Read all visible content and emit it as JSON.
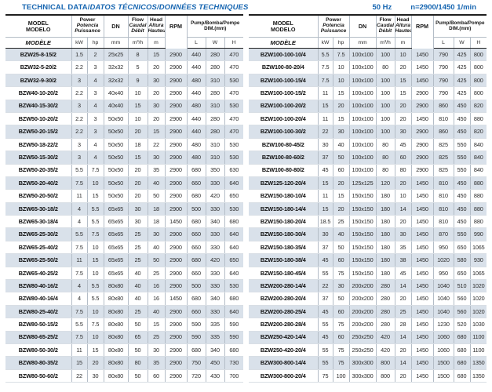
{
  "title": {
    "part1": "TECHNICAL DATA/",
    "part2": "DATOS TÉCNICOS/DONNÉES TECHNIQUES"
  },
  "frequency_label": "50 Hz",
  "speed_label": "n=2900/1450 1/min",
  "colors": {
    "accent_blue": "#1766b1",
    "row_shade": "#d9e1ea",
    "border_dark": "#1f1f1f",
    "border_light": "#b4bdc7"
  },
  "header": {
    "model_lines": [
      "MODEL",
      "MODELO",
      "MODÈLE"
    ],
    "power_lines": [
      "Power",
      "Potencia",
      "Puissance"
    ],
    "dn": "DN",
    "flow_lines": [
      "Flow",
      "Caudal",
      "Débit"
    ],
    "head_lines": [
      "Head",
      "Altura",
      "Hauteur"
    ],
    "rpm": "RPM",
    "dim_lines": [
      "Pump/Bomba/Pompe",
      "DIM.(mm)"
    ],
    "units": {
      "kw": "kW",
      "hp": "hp",
      "mm": "mm",
      "flow": "m³/h",
      "head": "m",
      "l": "L",
      "w": "W",
      "h": "H"
    }
  },
  "left_table": {
    "rows": [
      [
        "BZW25-8-15/2",
        "1.5",
        "2",
        "25x25",
        "8",
        "15",
        "2900",
        "440",
        "280",
        "470"
      ],
      [
        "BZW32-5-20/2",
        "2.2",
        "3",
        "32x32",
        "5",
        "20",
        "2900",
        "440",
        "280",
        "470"
      ],
      [
        "BZW32-9-30/2",
        "3",
        "4",
        "32x32",
        "9",
        "30",
        "2900",
        "480",
        "310",
        "530"
      ],
      [
        "BZW40-10-20/2",
        "2.2",
        "3",
        "40x40",
        "10",
        "20",
        "2900",
        "440",
        "280",
        "470"
      ],
      [
        "BZW40-15-30/2",
        "3",
        "4",
        "40x40",
        "15",
        "30",
        "2900",
        "480",
        "310",
        "530"
      ],
      [
        "BZW50-10-20/2",
        "2.2",
        "3",
        "50x50",
        "10",
        "20",
        "2900",
        "440",
        "280",
        "470"
      ],
      [
        "BZW50-20-15/2",
        "2.2",
        "3",
        "50x50",
        "20",
        "15",
        "2900",
        "440",
        "280",
        "470"
      ],
      [
        "BZW50-18-22/2",
        "3",
        "4",
        "50x50",
        "18",
        "22",
        "2900",
        "480",
        "310",
        "530"
      ],
      [
        "BZW50-15-30/2",
        "3",
        "4",
        "50x50",
        "15",
        "30",
        "2900",
        "480",
        "310",
        "530"
      ],
      [
        "BZW50-20-35/2",
        "5.5",
        "7.5",
        "50x50",
        "20",
        "35",
        "2900",
        "680",
        "350",
        "630"
      ],
      [
        "BZW50-20-40/2",
        "7.5",
        "10",
        "50x50",
        "20",
        "40",
        "2900",
        "660",
        "330",
        "640"
      ],
      [
        "BZW50-20-50/2",
        "11",
        "15",
        "50x50",
        "20",
        "50",
        "2900",
        "680",
        "420",
        "650"
      ],
      [
        "BZW65-30-18/2",
        "4",
        "5.5",
        "65x65",
        "30",
        "18",
        "2900",
        "500",
        "330",
        "530"
      ],
      [
        "BZW65-30-18/4",
        "4",
        "5.5",
        "65x65",
        "30",
        "18",
        "1450",
        "680",
        "340",
        "680"
      ],
      [
        "BZW65-25-30/2",
        "5.5",
        "7.5",
        "65x65",
        "25",
        "30",
        "2900",
        "660",
        "330",
        "640"
      ],
      [
        "BZW65-25-40/2",
        "7.5",
        "10",
        "65x65",
        "25",
        "40",
        "2900",
        "660",
        "330",
        "640"
      ],
      [
        "BZW65-25-50/2",
        "11",
        "15",
        "65x65",
        "25",
        "50",
        "2900",
        "680",
        "420",
        "650"
      ],
      [
        "BZW65-40-25/2",
        "7.5",
        "10",
        "65x65",
        "40",
        "25",
        "2900",
        "660",
        "330",
        "640"
      ],
      [
        "BZW80-40-16/2",
        "4",
        "5.5",
        "80x80",
        "40",
        "16",
        "2900",
        "500",
        "330",
        "530"
      ],
      [
        "BZW80-40-16/4",
        "4",
        "5.5",
        "80x80",
        "40",
        "16",
        "1450",
        "680",
        "340",
        "680"
      ],
      [
        "BZW80-25-40/2",
        "7.5",
        "10",
        "80x80",
        "25",
        "40",
        "2900",
        "660",
        "330",
        "640"
      ],
      [
        "BZW80-50-15/2",
        "5.5",
        "7.5",
        "80x80",
        "50",
        "15",
        "2900",
        "590",
        "335",
        "590"
      ],
      [
        "BZW80-65-25/2",
        "7.5",
        "10",
        "80x80",
        "65",
        "25",
        "2900",
        "590",
        "335",
        "590"
      ],
      [
        "BZW80-50-30/2",
        "11",
        "15",
        "80x80",
        "50",
        "30",
        "2900",
        "680",
        "340",
        "680"
      ],
      [
        "BZW80-80-35/2",
        "15",
        "20",
        "80x80",
        "80",
        "35",
        "2900",
        "750",
        "450",
        "730"
      ],
      [
        "BZW80-50-60/2",
        "22",
        "30",
        "80x80",
        "50",
        "60",
        "2900",
        "720",
        "430",
        "700"
      ]
    ]
  },
  "right_table": {
    "rows": [
      [
        "BZW100-100-10/4",
        "5.5",
        "7.5",
        "100x100",
        "100",
        "10",
        "1450",
        "790",
        "425",
        "800"
      ],
      [
        "BZW100-80-20/4",
        "7.5",
        "10",
        "100x100",
        "80",
        "20",
        "1450",
        "790",
        "425",
        "800"
      ],
      [
        "BZW100-100-15/4",
        "7.5",
        "10",
        "100x100",
        "100",
        "15",
        "1450",
        "790",
        "425",
        "800"
      ],
      [
        "BZW100-100-15/2",
        "11",
        "15",
        "100x100",
        "100",
        "15",
        "2900",
        "790",
        "425",
        "800"
      ],
      [
        "BZW100-100-20/2",
        "15",
        "20",
        "100x100",
        "100",
        "20",
        "2900",
        "860",
        "450",
        "820"
      ],
      [
        "BZW100-100-20/4",
        "11",
        "15",
        "100x100",
        "100",
        "20",
        "1450",
        "810",
        "450",
        "880"
      ],
      [
        "BZW100-100-30/2",
        "22",
        "30",
        "100x100",
        "100",
        "30",
        "2900",
        "860",
        "450",
        "820"
      ],
      [
        "BZW100-80-45/2",
        "30",
        "40",
        "100x100",
        "80",
        "45",
        "2900",
        "825",
        "550",
        "840"
      ],
      [
        "BZW100-80-60/2",
        "37",
        "50",
        "100x100",
        "80",
        "60",
        "2900",
        "825",
        "550",
        "840"
      ],
      [
        "BZW100-80-80/2",
        "45",
        "60",
        "100x100",
        "80",
        "80",
        "2900",
        "825",
        "550",
        "840"
      ],
      [
        "BZW125-120-20/4",
        "15",
        "20",
        "125x125",
        "120",
        "20",
        "1450",
        "810",
        "450",
        "880"
      ],
      [
        "BZW150-180-10/4",
        "11",
        "15",
        "150x150",
        "180",
        "10",
        "1450",
        "810",
        "450",
        "880"
      ],
      [
        "BZW150-180-14/4",
        "15",
        "20",
        "150x150",
        "180",
        "14",
        "1450",
        "810",
        "450",
        "880"
      ],
      [
        "BZW150-180-20/4",
        "18.5",
        "25",
        "150x150",
        "180",
        "20",
        "1450",
        "810",
        "450",
        "880"
      ],
      [
        "BZW150-180-30/4",
        "30",
        "40",
        "150x150",
        "180",
        "30",
        "1450",
        "870",
        "550",
        "990"
      ],
      [
        "BZW150-180-35/4",
        "37",
        "50",
        "150x150",
        "180",
        "35",
        "1450",
        "950",
        "650",
        "1065"
      ],
      [
        "BZW150-180-38/4",
        "45",
        "60",
        "150x150",
        "180",
        "38",
        "1450",
        "1020",
        "580",
        "930"
      ],
      [
        "BZW150-180-45/4",
        "55",
        "75",
        "150x150",
        "180",
        "45",
        "1450",
        "950",
        "650",
        "1065"
      ],
      [
        "BZW200-280-14/4",
        "22",
        "30",
        "200x200",
        "280",
        "14",
        "1450",
        "1040",
        "510",
        "1020"
      ],
      [
        "BZW200-280-20/4",
        "37",
        "50",
        "200x200",
        "280",
        "20",
        "1450",
        "1040",
        "560",
        "1020"
      ],
      [
        "BZW200-280-25/4",
        "45",
        "60",
        "200x200",
        "280",
        "25",
        "1450",
        "1040",
        "560",
        "1020"
      ],
      [
        "BZW200-280-28/4",
        "55",
        "75",
        "200x200",
        "280",
        "28",
        "1450",
        "1230",
        "520",
        "1030"
      ],
      [
        "BZW250-420-14/4",
        "45",
        "60",
        "250x250",
        "420",
        "14",
        "1450",
        "1060",
        "680",
        "1100"
      ],
      [
        "BZW250-420-20/4",
        "55",
        "75",
        "250x250",
        "420",
        "20",
        "1450",
        "1060",
        "680",
        "1100"
      ],
      [
        "BZW300-800-14/4",
        "55",
        "75",
        "300x300",
        "800",
        "14",
        "1450",
        "1500",
        "680",
        "1350"
      ],
      [
        "BZW300-800-20/4",
        "75",
        "100",
        "300x300",
        "800",
        "20",
        "1450",
        "1500",
        "680",
        "1350"
      ]
    ]
  }
}
